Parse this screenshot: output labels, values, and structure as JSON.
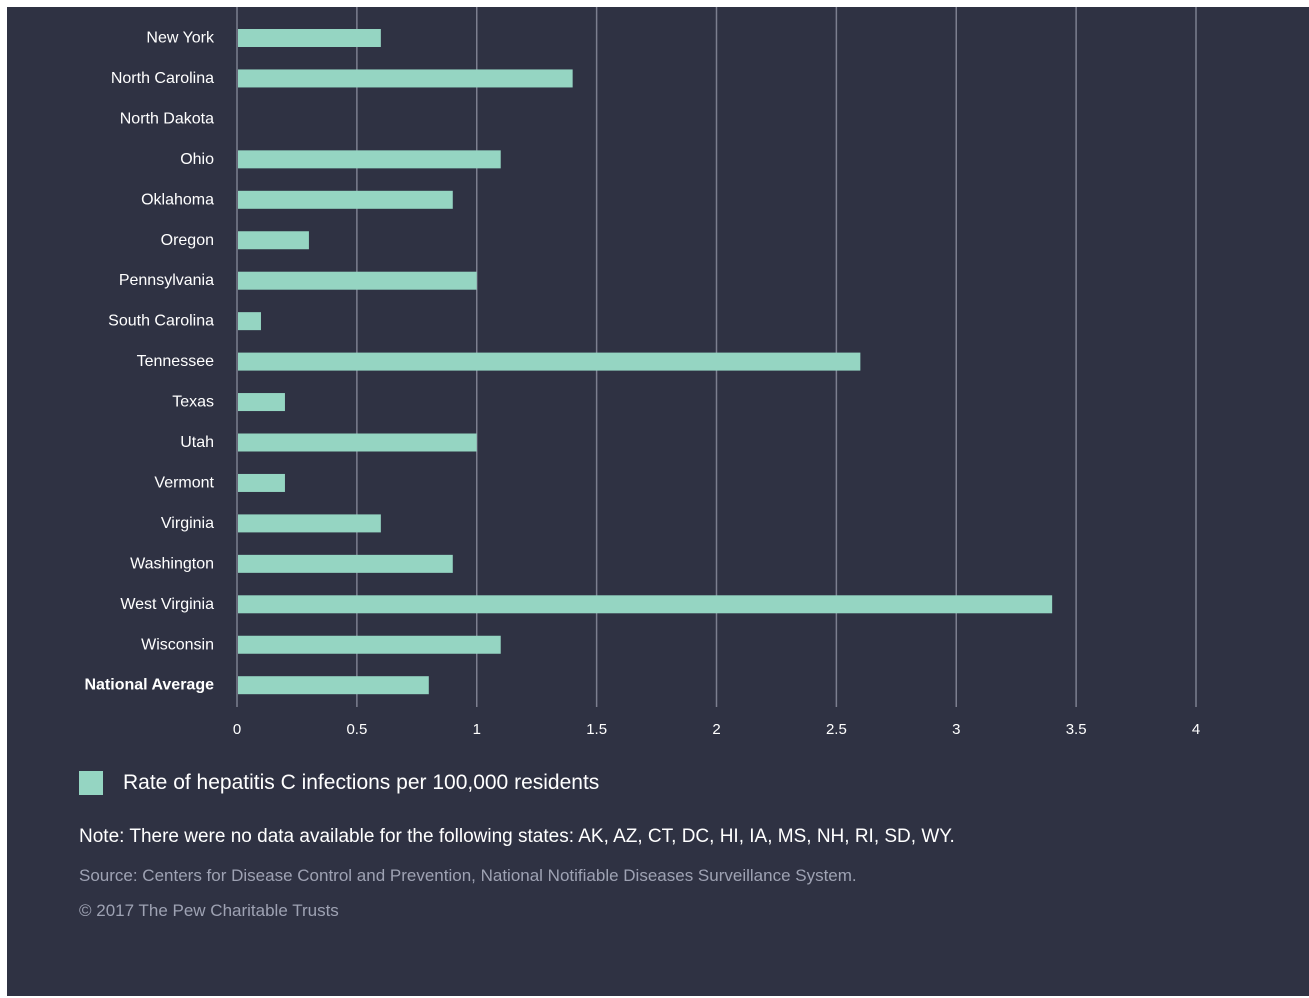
{
  "chart_data": {
    "type": "bar",
    "orientation": "horizontal",
    "categories": [
      "New York",
      "North Carolina",
      "North Dakota",
      "Ohio",
      "Oklahoma",
      "Oregon",
      "Pennsylvania",
      "South Carolina",
      "Tennessee",
      "Texas",
      "Utah",
      "Vermont",
      "Virginia",
      "Washington",
      "West Virginia",
      "Wisconsin",
      "National Average"
    ],
    "bold_categories": [
      "National Average"
    ],
    "series": [
      {
        "name": "Rate of hepatitis C infections per 100,000 residents",
        "values": [
          0.6,
          1.4,
          null,
          1.1,
          0.9,
          0.3,
          1.0,
          0.1,
          2.6,
          0.2,
          1.0,
          0.2,
          0.6,
          0.9,
          3.4,
          1.1,
          0.8
        ]
      }
    ],
    "xlim": [
      0,
      4
    ],
    "xticks": [
      0,
      0.5,
      1,
      1.5,
      2,
      2.5,
      3,
      3.5,
      4
    ],
    "xtick_labels": [
      "0",
      "0.5",
      "1",
      "1.5",
      "2",
      "2.5",
      "3",
      "3.5",
      "4"
    ],
    "grid": "vertical",
    "legend_position": "bottom-left",
    "colors": {
      "bar": "#95d5c2",
      "background": "#2f3243",
      "grid": "#7c7f8f"
    }
  },
  "legend": {
    "label": "Rate of hepatitis C infections per 100,000 residents"
  },
  "footer": {
    "note": "Note: There were no data available for the following states: AK, AZ, CT, DC, HI, IA, MS, NH, RI, SD, WY.",
    "source": "Source: Centers for Disease Control and Prevention, National Notifiable Diseases Surveillance System.",
    "copyright": "© 2017 The Pew Charitable Trusts"
  }
}
